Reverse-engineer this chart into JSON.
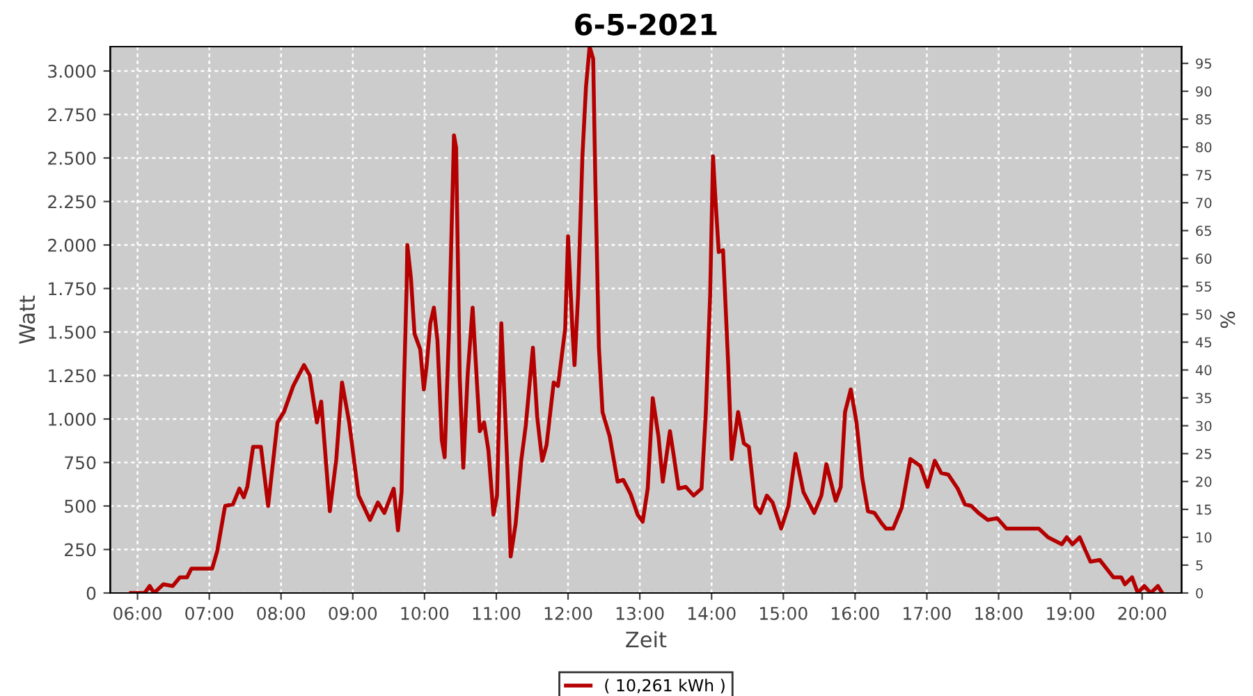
{
  "chart_data": {
    "type": "line",
    "title": "6-5-2021",
    "xlabel": "Zeit",
    "ylabel": "Watt",
    "y2label": "%",
    "xlim": [
      5.62,
      20.55
    ],
    "xticks": [
      {
        "value": 6,
        "label": "06:00"
      },
      {
        "value": 7,
        "label": "07:00"
      },
      {
        "value": 8,
        "label": "08:00"
      },
      {
        "value": 9,
        "label": "09:00"
      },
      {
        "value": 10,
        "label": "10:00"
      },
      {
        "value": 11,
        "label": "11:00"
      },
      {
        "value": 12,
        "label": "12:00"
      },
      {
        "value": 13,
        "label": "13:00"
      },
      {
        "value": 14,
        "label": "14:00"
      },
      {
        "value": 15,
        "label": "15:00"
      },
      {
        "value": 16,
        "label": "16:00"
      },
      {
        "value": 17,
        "label": "17:00"
      },
      {
        "value": 18,
        "label": "18:00"
      },
      {
        "value": 19,
        "label": "19:00"
      },
      {
        "value": 20,
        "label": "20:00"
      }
    ],
    "ylim": [
      0,
      3140
    ],
    "yticks": [
      0,
      250,
      500,
      750,
      {
        "value": 1000,
        "label": "1.000"
      },
      {
        "value": 1250,
        "label": "1.250"
      },
      {
        "value": 1500,
        "label": "1.500"
      },
      {
        "value": 1750,
        "label": "1.750"
      },
      {
        "value": 2000,
        "label": "2.000"
      },
      {
        "value": 2250,
        "label": "2.250"
      },
      {
        "value": 2500,
        "label": "2.500"
      },
      {
        "value": 2750,
        "label": "2.750"
      },
      {
        "value": 3000,
        "label": "3.000"
      }
    ],
    "y2lim": [
      0,
      98
    ],
    "y2ticks": [
      0,
      5,
      10,
      15,
      20,
      25,
      30,
      35,
      40,
      45,
      50,
      55,
      60,
      65,
      70,
      75,
      80,
      85,
      90,
      95
    ],
    "grid": true,
    "legend": "bottom",
    "marker": "none",
    "line_style": "solid",
    "series": [
      {
        "name": "( 10,261 kWh )",
        "color": "#b40000",
        "x": [
          5.91,
          6.1,
          6.17,
          6.23,
          6.36,
          6.49,
          6.59,
          6.69,
          6.75,
          7.04,
          7.11,
          7.22,
          7.33,
          7.42,
          7.48,
          7.53,
          7.61,
          7.72,
          7.82,
          7.95,
          8.04,
          8.17,
          8.32,
          8.4,
          8.5,
          8.56,
          8.68,
          8.77,
          8.85,
          8.95,
          9.08,
          9.24,
          9.35,
          9.44,
          9.57,
          9.63,
          9.68,
          9.71,
          9.75,
          9.76,
          9.81,
          9.86,
          9.94,
          9.99,
          10.03,
          10.08,
          10.13,
          10.18,
          10.24,
          10.28,
          10.34,
          10.41,
          10.44,
          10.49,
          10.54,
          10.6,
          10.67,
          10.73,
          10.77,
          10.83,
          10.89,
          10.96,
          11.01,
          11.07,
          11.15,
          11.2,
          11.27,
          11.35,
          11.41,
          11.51,
          11.57,
          11.64,
          11.7,
          11.8,
          11.86,
          11.96,
          12.0,
          12.06,
          12.09,
          12.14,
          12.2,
          12.25,
          12.3,
          12.35,
          12.38,
          12.43,
          12.48,
          12.58,
          12.69,
          12.77,
          12.87,
          12.97,
          13.04,
          13.11,
          13.18,
          13.26,
          13.32,
          13.42,
          13.48,
          13.54,
          13.64,
          13.75,
          13.86,
          13.92,
          13.98,
          14.02,
          14.05,
          14.1,
          14.16,
          14.23,
          14.28,
          14.37,
          14.45,
          14.52,
          14.61,
          14.68,
          14.77,
          14.85,
          14.97,
          15.07,
          15.17,
          15.28,
          15.43,
          15.53,
          15.6,
          15.73,
          15.8,
          15.86,
          15.94,
          16.02,
          16.1,
          16.18,
          16.27,
          16.37,
          16.43,
          16.53,
          16.65,
          16.77,
          16.91,
          17.01,
          17.11,
          17.2,
          17.3,
          17.43,
          17.53,
          17.62,
          17.72,
          17.85,
          17.98,
          18.11,
          18.56,
          18.69,
          18.88,
          18.95,
          19.03,
          19.13,
          19.28,
          19.41,
          19.6,
          19.71,
          19.76,
          19.86,
          19.94,
          20.03,
          20.12,
          20.22,
          20.28
        ],
        "values": [
          0,
          0,
          40,
          0,
          50,
          40,
          90,
          90,
          140,
          140,
          240,
          500,
          510,
          600,
          550,
          610,
          840,
          840,
          500,
          980,
          1040,
          1190,
          1310,
          1250,
          980,
          1100,
          470,
          770,
          1210,
          980,
          560,
          420,
          520,
          460,
          600,
          360,
          580,
          1140,
          1760,
          2000,
          1810,
          1490,
          1400,
          1170,
          1310,
          1550,
          1640,
          1450,
          880,
          780,
          1490,
          2630,
          2560,
          1240,
          720,
          1250,
          1640,
          1210,
          930,
          980,
          820,
          450,
          560,
          1550,
          770,
          210,
          400,
          770,
          960,
          1410,
          1010,
          760,
          850,
          1210,
          1190,
          1520,
          2050,
          1520,
          1310,
          1710,
          2510,
          2910,
          3140,
          3070,
          2370,
          1410,
          1040,
          900,
          640,
          650,
          570,
          450,
          410,
          600,
          1120,
          900,
          640,
          930,
          770,
          600,
          610,
          560,
          600,
          1040,
          1710,
          2510,
          2290,
          1960,
          1970,
          1330,
          770,
          1040,
          860,
          840,
          500,
          460,
          560,
          520,
          370,
          500,
          800,
          580,
          460,
          560,
          740,
          530,
          610,
          1040,
          1170,
          980,
          660,
          470,
          460,
          400,
          370,
          370,
          490,
          770,
          730,
          610,
          760,
          690,
          680,
          600,
          510,
          500,
          460,
          420,
          430,
          370,
          370,
          320,
          280,
          320,
          280,
          320,
          180,
          190,
          90,
          90,
          50,
          90,
          0,
          40,
          0,
          40,
          0
        ]
      }
    ]
  }
}
